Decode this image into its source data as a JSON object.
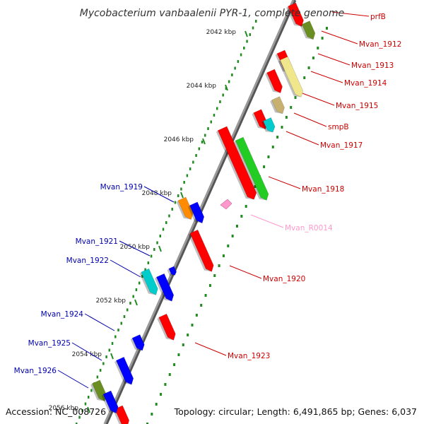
{
  "title": "Mycobacterium vanbaalenii PYR-1, complete genome",
  "accession": "Accession: NC_008726",
  "topology": "Topology: circular; Length: 6,491,865 bp; Genes: 6,037",
  "scale_labels": [
    "2042 kbp",
    "2044 kbp",
    "2046 kbp",
    "2048 kbp",
    "2050 kbp",
    "2052 kbp",
    "2054 kbp",
    "2056 kbp"
  ],
  "colors": {
    "forward_cds": "#ff0000",
    "reverse_cds": "#0000ff",
    "forward_label": "#cc0000",
    "reverse_label": "#0000aa",
    "rna": "#ff99cc",
    "scale": "#228b22",
    "backbone": "#888888",
    "olive": "#6b8e23",
    "khaki": "#f0e68c",
    "green": "#22cc22",
    "cyan": "#00cccc",
    "orange": "#ff8c00"
  },
  "genes": [
    {
      "name": "prfB",
      "strand": "+"
    },
    {
      "name": "Mvan_1912",
      "strand": "+"
    },
    {
      "name": "Mvan_1913",
      "strand": "+"
    },
    {
      "name": "Mvan_1914",
      "strand": "+"
    },
    {
      "name": "Mvan_1915",
      "strand": "+"
    },
    {
      "name": "smpB",
      "strand": "+"
    },
    {
      "name": "Mvan_1917",
      "strand": "+"
    },
    {
      "name": "Mvan_1918",
      "strand": "+"
    },
    {
      "name": "Mvan_R0014",
      "strand": "+"
    },
    {
      "name": "Mvan_1920",
      "strand": "+"
    },
    {
      "name": "Mvan_1923",
      "strand": "+"
    },
    {
      "name": "Mvan_1919",
      "strand": "-"
    },
    {
      "name": "Mvan_1921",
      "strand": "-"
    },
    {
      "name": "Mvan_1922",
      "strand": "-"
    },
    {
      "name": "Mvan_1924",
      "strand": "-"
    },
    {
      "name": "Mvan_1925",
      "strand": "-"
    },
    {
      "name": "Mvan_1926",
      "strand": "-"
    }
  ]
}
